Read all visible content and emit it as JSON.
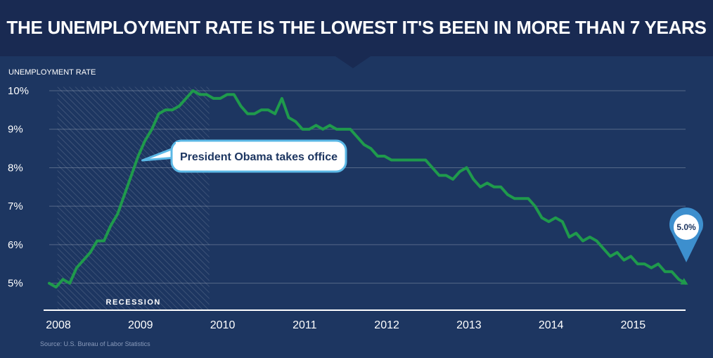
{
  "chart_data": {
    "type": "line",
    "title": "THE UNEMPLOYMENT RATE IS THE LOWEST IT'S BEEN IN MORE THAN 7 YEARS",
    "ylabel": "UNEMPLOYMENT RATE",
    "xlabel": "",
    "ylim": [
      4.3,
      10.2
    ],
    "xlim": [
      2008,
      2015.75
    ],
    "yticks": [
      5,
      6,
      7,
      8,
      9,
      10
    ],
    "ytick_labels": [
      "5%",
      "6%",
      "7%",
      "8%",
      "9%",
      "10%"
    ],
    "xticks": [
      2008,
      2009,
      2010,
      2011,
      2012,
      2013,
      2014,
      2015
    ],
    "xtick_labels": [
      "2008",
      "2009",
      "2010",
      "2011",
      "2012",
      "2013",
      "2014",
      "2015"
    ],
    "series": [
      {
        "name": "Unemployment rate",
        "color": "#1f9a4c",
        "x_start": 2008,
        "x_step": 0.08333,
        "values": [
          5.0,
          4.9,
          5.1,
          5.0,
          5.4,
          5.6,
          5.8,
          6.1,
          6.1,
          6.5,
          6.8,
          7.3,
          7.8,
          8.3,
          8.7,
          9.0,
          9.4,
          9.5,
          9.5,
          9.6,
          9.8,
          10.0,
          9.9,
          9.9,
          9.8,
          9.8,
          9.9,
          9.9,
          9.6,
          9.4,
          9.4,
          9.5,
          9.5,
          9.4,
          9.8,
          9.3,
          9.2,
          9.0,
          9.0,
          9.1,
          9.0,
          9.1,
          9.0,
          9.0,
          9.0,
          8.8,
          8.6,
          8.5,
          8.3,
          8.3,
          8.2,
          8.2,
          8.2,
          8.2,
          8.2,
          8.2,
          8.0,
          7.8,
          7.8,
          7.7,
          7.9,
          8.0,
          7.7,
          7.5,
          7.6,
          7.5,
          7.5,
          7.3,
          7.2,
          7.2,
          7.2,
          7.0,
          6.7,
          6.6,
          6.7,
          6.6,
          6.2,
          6.3,
          6.1,
          6.2,
          6.1,
          5.9,
          5.7,
          5.8,
          5.6,
          5.7,
          5.5,
          5.5,
          5.4,
          5.5,
          5.3,
          5.3,
          5.1,
          5.0
        ]
      }
    ],
    "shaded_regions": [
      {
        "label": "RECESSION",
        "x_start": 2008.1,
        "x_end": 2009.95
      }
    ],
    "annotations": [
      {
        "text": "President Obama takes office",
        "x": 2009.1
      }
    ],
    "last_value_label": "5.0%",
    "source": "Source: U.S. Bureau of Labor Statistics"
  }
}
